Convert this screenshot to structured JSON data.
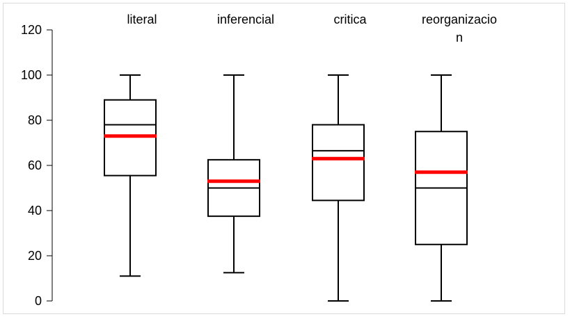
{
  "chart_data": {
    "type": "boxplot",
    "title": "",
    "xlabel": "",
    "ylabel": "",
    "ylim": [
      0,
      120
    ],
    "yticks": [
      0,
      20,
      40,
      60,
      80,
      100,
      120
    ],
    "ytick_labels": [
      "0",
      "20",
      "40",
      "60",
      "80",
      "100",
      "120"
    ],
    "grid": false,
    "categories": [
      "literal",
      "inferencial",
      "critica",
      "reorganizacion"
    ],
    "category_label_lines": [
      [
        "literal"
      ],
      [
        "inferencial"
      ],
      [
        "critica"
      ],
      [
        "reorganizacio",
        "n"
      ]
    ],
    "boxes": [
      {
        "category": "literal",
        "whisker_low": 11,
        "q1": 55.5,
        "median": 78,
        "q3": 89,
        "whisker_high": 100,
        "mean": 73
      },
      {
        "category": "inferencial",
        "whisker_low": 12.5,
        "q1": 37.5,
        "median": 50,
        "q3": 62.5,
        "whisker_high": 100,
        "mean": 53
      },
      {
        "category": "critica",
        "whisker_low": 0,
        "q1": 44.5,
        "median": 66.5,
        "q3": 78,
        "whisker_high": 100,
        "mean": 63
      },
      {
        "category": "reorganizacion",
        "whisker_low": 0,
        "q1": 25,
        "median": 50,
        "q3": 75,
        "whisker_high": 100,
        "mean": 57
      }
    ],
    "colors": {
      "box": "#000000",
      "median": "#000000",
      "mean": "#ff0000"
    }
  }
}
